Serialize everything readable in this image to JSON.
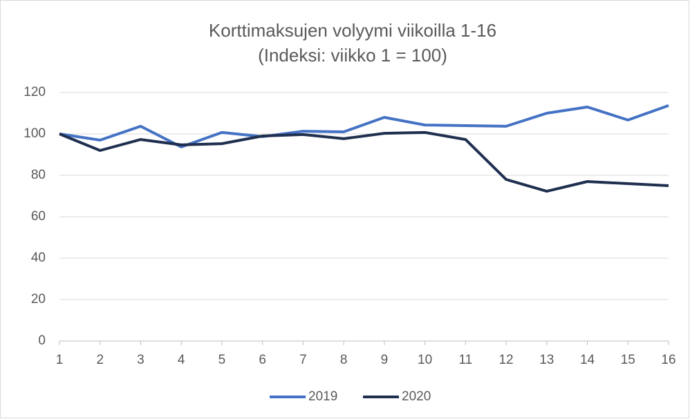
{
  "chart_data": {
    "type": "line",
    "title": "Korttimaksujen volyymi viikoilla 1-16",
    "subtitle": "(Indeksi: viikko 1 = 100)",
    "x": [
      1,
      2,
      3,
      4,
      5,
      6,
      7,
      8,
      9,
      10,
      11,
      12,
      13,
      14,
      15,
      16
    ],
    "xlim": [
      1,
      16
    ],
    "xticks": [
      1,
      2,
      3,
      4,
      5,
      6,
      7,
      8,
      9,
      10,
      11,
      12,
      13,
      14,
      15,
      16
    ],
    "ylim": [
      0,
      120
    ],
    "yticks": [
      0,
      20,
      40,
      60,
      80,
      100,
      120
    ],
    "grid": true,
    "legend": "bottom",
    "series": [
      {
        "name": "2019",
        "color": "#4472c4",
        "values": [
          100,
          97,
          103.7,
          93.7,
          100.7,
          98.7,
          101.3,
          101,
          108,
          104.3,
          104,
          103.7,
          110,
          113,
          106.7,
          113.7
        ]
      },
      {
        "name": "2020",
        "color": "#1f2f4f",
        "values": [
          100,
          92,
          97.3,
          94.7,
          95.3,
          99,
          99.7,
          97.7,
          100.3,
          100.7,
          97.3,
          78,
          72.3,
          77,
          76,
          75
        ]
      }
    ]
  }
}
